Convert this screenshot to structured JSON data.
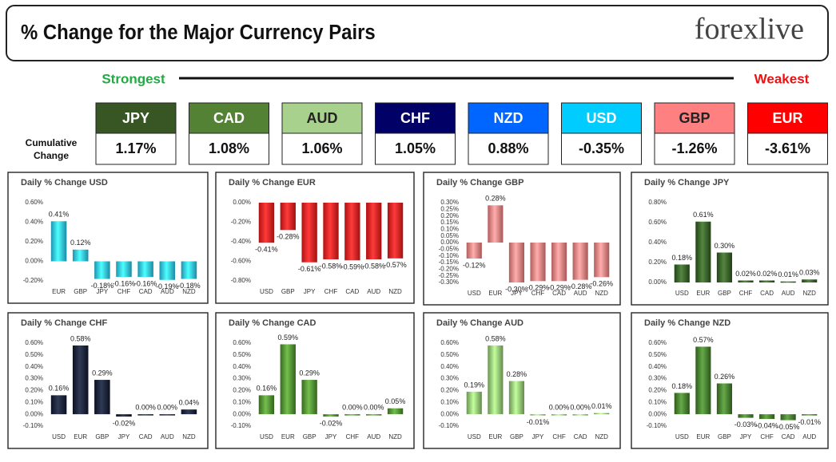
{
  "header": {
    "title": "% Change for the Major Currency Pairs",
    "logo": "forexlive"
  },
  "strength": {
    "strongest": "Strongest",
    "weakest": "Weakest",
    "row_label": "Cumulative Change",
    "currencies": [
      {
        "name": "JPY",
        "value": "1.17%",
        "color": "#375623"
      },
      {
        "name": "CAD",
        "value": "1.08%",
        "color": "#548235"
      },
      {
        "name": "AUD",
        "value": "1.06%",
        "color": "#a9d18e"
      },
      {
        "name": "CHF",
        "value": "1.05%",
        "color": "#000066"
      },
      {
        "name": "NZD",
        "value": "0.88%",
        "color": "#0066ff"
      },
      {
        "name": "USD",
        "value": "-0.35%",
        "color": "#00ccff"
      },
      {
        "name": "GBP",
        "value": "-1.26%",
        "color": "#ff8080"
      },
      {
        "name": "EUR",
        "value": "-3.61%",
        "color": "#ff0000"
      }
    ]
  },
  "chart_data": [
    {
      "type": "bar",
      "title": "Daily % Change USD",
      "color": "#29c5ec",
      "grid": false,
      "categories": [
        "EUR",
        "GBP",
        "JPY",
        "CHF",
        "CAD",
        "AUD",
        "NZD"
      ],
      "values": [
        0.41,
        0.12,
        -0.18,
        -0.16,
        -0.16,
        -0.19,
        -0.18
      ],
      "value_labels": [
        "0.41%",
        "0.12%",
        "-0.18%",
        "-0.16%",
        "-0.16%",
        "-0.19%",
        "-0.18%"
      ],
      "ylim": [
        -0.2,
        0.6
      ],
      "yticks": [
        {
          "value": -0.2,
          "label": "-0.20%"
        },
        {
          "value": 0,
          "label": "0.00%"
        },
        {
          "value": 0.2,
          "label": "0.20%"
        },
        {
          "value": 0.4,
          "label": "0.40%"
        },
        {
          "value": 0.6,
          "label": "0.60%"
        }
      ]
    },
    {
      "type": "bar",
      "title": "Daily % Change EUR",
      "color": "#e81818",
      "grid": false,
      "categories": [
        "USD",
        "GBP",
        "JPY",
        "CHF",
        "CAD",
        "AUD",
        "NZD"
      ],
      "values": [
        -0.41,
        -0.28,
        -0.61,
        -0.58,
        -0.59,
        -0.58,
        -0.57
      ],
      "value_labels": [
        "-0.41%",
        "-0.28%",
        "-0.61%",
        "-0.58%",
        "-0.59%",
        "-0.58%",
        "-0.57%"
      ],
      "ylim": [
        -0.8,
        0
      ],
      "yticks": [
        {
          "value": -0.8,
          "label": "-0.80%"
        },
        {
          "value": -0.6,
          "label": "-0.60%"
        },
        {
          "value": -0.4,
          "label": "-0.40%"
        },
        {
          "value": -0.2,
          "label": "-0.20%"
        },
        {
          "value": 0,
          "label": "0.00%"
        }
      ]
    },
    {
      "type": "bar",
      "title": "Daily % Change GBP",
      "color": "#f07c7c",
      "grid": false,
      "categories": [
        "USD",
        "EUR",
        "JPY",
        "CHF",
        "CAD",
        "AUD",
        "NZD"
      ],
      "values": [
        -0.12,
        0.28,
        -0.3,
        -0.29,
        -0.29,
        -0.28,
        -0.26
      ],
      "value_labels": [
        "-0.12%",
        "0.28%",
        "-0.30%",
        "-0.29%",
        "-0.29%",
        "-0.28%",
        "-0.26%"
      ],
      "ylim": [
        -0.3,
        0.3
      ],
      "yticks": [
        {
          "value": -0.3,
          "label": "-0.30%"
        },
        {
          "value": -0.25,
          "label": "-0.25%"
        },
        {
          "value": -0.2,
          "label": "-0.20%"
        },
        {
          "value": -0.15,
          "label": "-0.15%"
        },
        {
          "value": -0.1,
          "label": "-0.10%"
        },
        {
          "value": -0.05,
          "label": "-0.05%"
        },
        {
          "value": 0,
          "label": "0.00%"
        },
        {
          "value": 0.05,
          "label": "0.05%"
        },
        {
          "value": 0.1,
          "label": "0.10%"
        },
        {
          "value": 0.15,
          "label": "0.15%"
        },
        {
          "value": 0.2,
          "label": "0.20%"
        },
        {
          "value": 0.25,
          "label": "0.25%"
        },
        {
          "value": 0.3,
          "label": "0.30%"
        }
      ]
    },
    {
      "type": "bar",
      "title": "Daily % Change JPY",
      "color": "#2f5a1e",
      "grid": false,
      "categories": [
        "USD",
        "EUR",
        "GBP",
        "CHF",
        "CAD",
        "AUD",
        "NZD"
      ],
      "values": [
        0.18,
        0.61,
        0.3,
        0.02,
        0.02,
        0.01,
        0.03
      ],
      "value_labels": [
        "0.18%",
        "0.61%",
        "0.30%",
        "0.02%",
        "0.02%",
        "0.01%",
        "0.03%"
      ],
      "ylim": [
        0,
        0.8
      ],
      "yticks": [
        {
          "value": 0,
          "label": "0.00%"
        },
        {
          "value": 0.2,
          "label": "0.20%"
        },
        {
          "value": 0.4,
          "label": "0.40%"
        },
        {
          "value": 0.6,
          "label": "0.60%"
        },
        {
          "value": 0.8,
          "label": "0.80%"
        }
      ]
    },
    {
      "type": "bar",
      "title": "Daily % Change CHF",
      "color": "#101830",
      "grid": false,
      "categories": [
        "USD",
        "EUR",
        "GBP",
        "JPY",
        "CAD",
        "AUD",
        "NZD"
      ],
      "values": [
        0.16,
        0.58,
        0.29,
        -0.02,
        0.0,
        0.0,
        0.04
      ],
      "value_labels": [
        "0.16%",
        "0.58%",
        "0.29%",
        "-0.02%",
        "0.00%",
        "0.00%",
        "0.04%"
      ],
      "ylim": [
        -0.1,
        0.6
      ],
      "yticks": [
        {
          "value": -0.1,
          "label": "-0.10%"
        },
        {
          "value": 0,
          "label": "0.00%"
        },
        {
          "value": 0.1,
          "label": "0.10%"
        },
        {
          "value": 0.2,
          "label": "0.20%"
        },
        {
          "value": 0.3,
          "label": "0.30%"
        },
        {
          "value": 0.4,
          "label": "0.40%"
        },
        {
          "value": 0.5,
          "label": "0.50%"
        },
        {
          "value": 0.6,
          "label": "0.60%"
        }
      ]
    },
    {
      "type": "bar",
      "title": "Daily % Change CAD",
      "color": "#4a8c2a",
      "grid": false,
      "categories": [
        "USD",
        "EUR",
        "GBP",
        "JPY",
        "CHF",
        "AUD",
        "NZD"
      ],
      "values": [
        0.16,
        0.59,
        0.29,
        -0.02,
        0.0,
        0.0,
        0.05
      ],
      "value_labels": [
        "0.16%",
        "0.59%",
        "0.29%",
        "-0.02%",
        "0.00%",
        "0.00%",
        "0.05%"
      ],
      "ylim": [
        -0.1,
        0.6
      ],
      "yticks": [
        {
          "value": -0.1,
          "label": "-0.10%"
        },
        {
          "value": 0,
          "label": "0.00%"
        },
        {
          "value": 0.1,
          "label": "0.10%"
        },
        {
          "value": 0.2,
          "label": "0.20%"
        },
        {
          "value": 0.3,
          "label": "0.30%"
        },
        {
          "value": 0.4,
          "label": "0.40%"
        },
        {
          "value": 0.5,
          "label": "0.50%"
        },
        {
          "value": 0.6,
          "label": "0.60%"
        }
      ]
    },
    {
      "type": "bar",
      "title": "Daily % Change AUD",
      "color": "#8fc46e",
      "grid": false,
      "categories": [
        "USD",
        "EUR",
        "GBP",
        "JPY",
        "CHF",
        "CAD",
        "NZD"
      ],
      "values": [
        0.19,
        0.58,
        0.28,
        -0.01,
        0.0,
        0.0,
        0.01
      ],
      "value_labels": [
        "0.19%",
        "0.58%",
        "0.28%",
        "-0.01%",
        "0.00%",
        "0.00%",
        "0.01%"
      ],
      "ylim": [
        -0.1,
        0.6
      ],
      "yticks": [
        {
          "value": -0.1,
          "label": "-0.10%"
        },
        {
          "value": 0,
          "label": "0.00%"
        },
        {
          "value": 0.1,
          "label": "0.10%"
        },
        {
          "value": 0.2,
          "label": "0.20%"
        },
        {
          "value": 0.3,
          "label": "0.30%"
        },
        {
          "value": 0.4,
          "label": "0.40%"
        },
        {
          "value": 0.5,
          "label": "0.50%"
        },
        {
          "value": 0.6,
          "label": "0.60%"
        }
      ]
    },
    {
      "type": "bar",
      "title": "Daily % Change NZD",
      "color": "#3e7a25",
      "grid": false,
      "categories": [
        "USD",
        "EUR",
        "GBP",
        "JPY",
        "CHF",
        "CAD",
        "AUD"
      ],
      "values": [
        0.18,
        0.57,
        0.26,
        -0.03,
        -0.04,
        -0.05,
        -0.01
      ],
      "value_labels": [
        "0.18%",
        "0.57%",
        "0.26%",
        "-0.03%",
        "-0.04%",
        "-0.05%",
        "-0.01%"
      ],
      "ylim": [
        -0.1,
        0.6
      ],
      "yticks": [
        {
          "value": -0.1,
          "label": "-0.10%"
        },
        {
          "value": 0,
          "label": "0.00%"
        },
        {
          "value": 0.1,
          "label": "0.10%"
        },
        {
          "value": 0.2,
          "label": "0.20%"
        },
        {
          "value": 0.3,
          "label": "0.30%"
        },
        {
          "value": 0.4,
          "label": "0.40%"
        },
        {
          "value": 0.5,
          "label": "0.50%"
        },
        {
          "value": 0.6,
          "label": "0.60%"
        }
      ]
    }
  ]
}
